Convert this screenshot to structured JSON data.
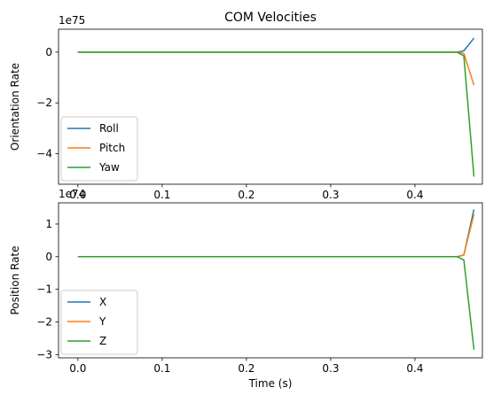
{
  "chart_data": [
    {
      "type": "line",
      "title": "COM Velocities",
      "xlabel": "",
      "ylabel": "Orientation Rate",
      "offset_text": "1e75",
      "xlim": [
        -0.023,
        0.48
      ],
      "ylim": [
        -5.2,
        0.9
      ],
      "xticks": [
        0.0,
        0.1,
        0.2,
        0.3,
        0.4
      ],
      "xtick_labels": [
        "0.0",
        "0.1",
        "0.2",
        "0.3",
        "0.4"
      ],
      "yticks": [
        0,
        -2,
        -4
      ],
      "ytick_labels": [
        "0",
        "−2",
        "−4"
      ],
      "legend_position": "lower-left",
      "x": [
        0.0,
        0.45,
        0.458,
        0.47
      ],
      "series": [
        {
          "name": "Roll",
          "color": "#1f77b4",
          "values": [
            0,
            0,
            0.05,
            0.55
          ]
        },
        {
          "name": "Pitch",
          "color": "#ff7f0e",
          "values": [
            0,
            0,
            -0.05,
            -1.3
          ]
        },
        {
          "name": "Yaw",
          "color": "#2ca02c",
          "values": [
            0,
            0,
            -0.15,
            -4.9
          ]
        }
      ]
    },
    {
      "type": "line",
      "title": "",
      "xlabel": "Time (s)",
      "ylabel": "Position Rate",
      "offset_text": "1e74",
      "xlim": [
        -0.023,
        0.48
      ],
      "ylim": [
        -3.1,
        1.65
      ],
      "xticks": [
        0.0,
        0.1,
        0.2,
        0.3,
        0.4
      ],
      "xtick_labels": [
        "0.0",
        "0.1",
        "0.2",
        "0.3",
        "0.4"
      ],
      "yticks": [
        1,
        0,
        -1,
        -2,
        -3
      ],
      "ytick_labels": [
        "1",
        "0",
        "−1",
        "−2",
        "−3"
      ],
      "legend_position": "lower-left",
      "x": [
        0.0,
        0.45,
        0.458,
        0.47
      ],
      "series": [
        {
          "name": "X",
          "color": "#1f77b4",
          "values": [
            0,
            0,
            0.05,
            1.45
          ]
        },
        {
          "name": "Y",
          "color": "#ff7f0e",
          "values": [
            0,
            0,
            0.05,
            1.3
          ]
        },
        {
          "name": "Z",
          "color": "#2ca02c",
          "values": [
            0,
            0,
            -0.1,
            -2.85
          ]
        }
      ]
    }
  ]
}
